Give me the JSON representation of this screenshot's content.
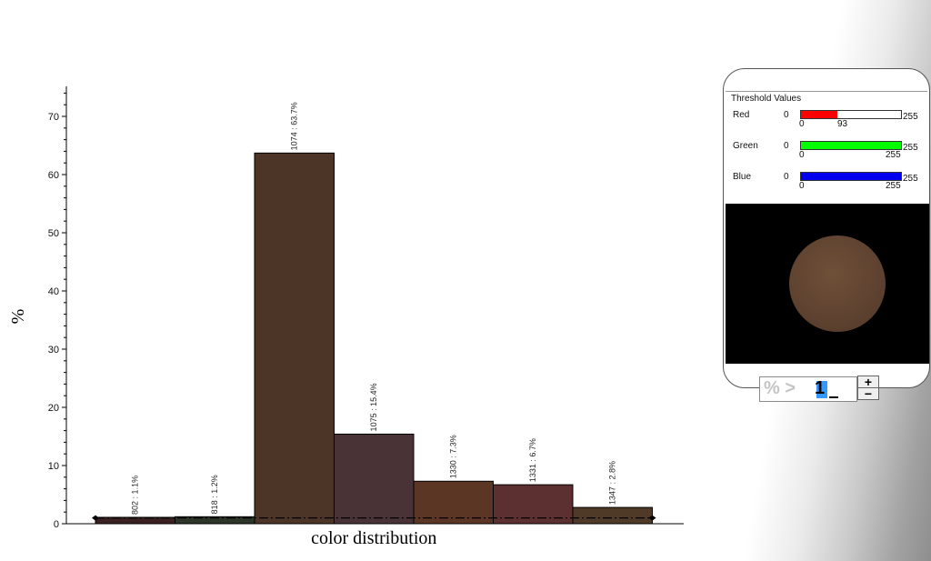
{
  "chart_data": {
    "type": "bar",
    "title": "",
    "xlabel": "color distribution",
    "ylabel": "%",
    "ylim": [
      0,
      75
    ],
    "yticks": [
      0,
      10,
      20,
      30,
      40,
      50,
      60,
      70
    ],
    "grid": false,
    "categories": [
      "802",
      "818",
      "1074",
      "1075",
      "1330",
      "1331",
      "1347"
    ],
    "values": [
      1.1,
      1.2,
      63.7,
      15.4,
      7.3,
      6.7,
      2.8
    ],
    "labels": [
      "802 : 1.1%",
      "818 : 1.2%",
      "1074 : 63.7%",
      "1075 : 15.4%",
      "1330 : 7.3%",
      "1331 : 6.7%",
      "1347 : 2.8%"
    ],
    "colors": [
      "#3b2022",
      "#2d3528",
      "#4c3526",
      "#4a3337",
      "#5c3624",
      "#5c3031",
      "#4f3a28"
    ],
    "threshold_line": 1
  },
  "threshold": {
    "title": "Threshold Values",
    "channels": [
      {
        "name": "Red",
        "min": "0",
        "max": "255",
        "low": "0",
        "high": "93",
        "value": 93,
        "color": "#ff0000"
      },
      {
        "name": "Green",
        "min": "0",
        "max": "255",
        "low": "0",
        "high": "255",
        "value": 255,
        "color": "#00ff00"
      },
      {
        "name": "Blue",
        "min": "0",
        "max": "255",
        "low": "0",
        "high": "255",
        "value": 255,
        "color": "#0000ee"
      }
    ]
  },
  "percent_filter": {
    "label": "% >",
    "value": "1",
    "plus": "+",
    "minus": "−"
  }
}
